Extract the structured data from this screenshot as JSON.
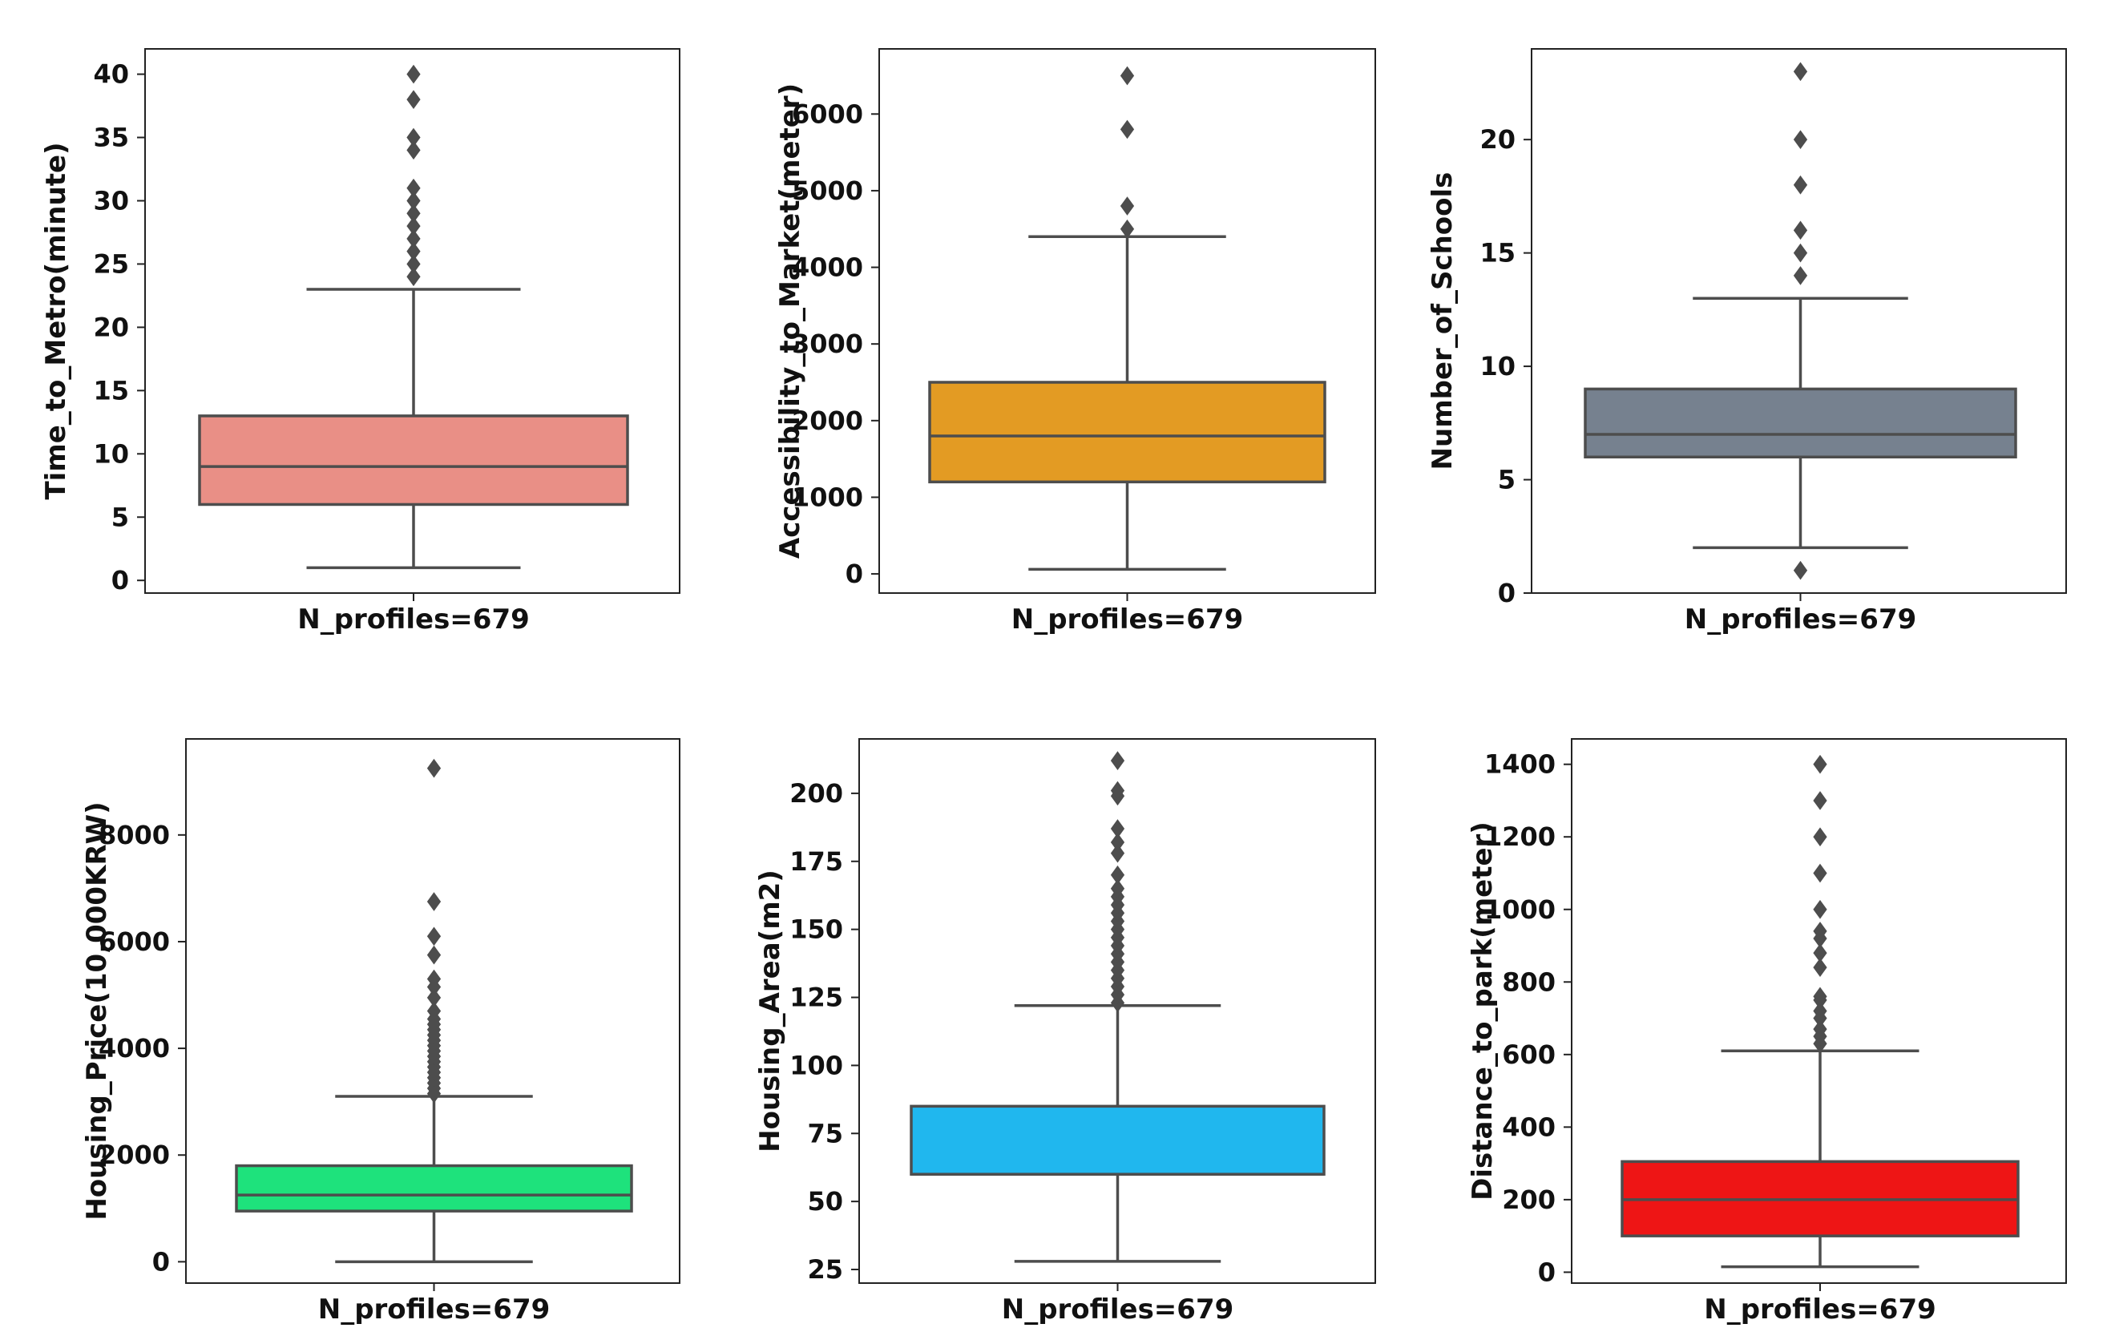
{
  "chart_data": [
    {
      "type": "boxplot",
      "xlabel": "N_profiles=679",
      "ylabel": "Time_to_Metro(minute)",
      "ylim": [
        -1,
        42
      ],
      "yticks": [
        0,
        5,
        10,
        15,
        20,
        25,
        30,
        35,
        40
      ],
      "color": "#e98f86",
      "stats": {
        "whisker_low": 1,
        "q1": 6,
        "median": 9,
        "q3": 13,
        "whisker_high": 23
      },
      "outliers": [
        24,
        25,
        26,
        27,
        28,
        29,
        30,
        31,
        34,
        35,
        38,
        40
      ]
    },
    {
      "type": "boxplot",
      "xlabel": "N_profiles=679",
      "ylabel": "Accessibility_to_Market(meter)",
      "ylim": [
        -250,
        6850
      ],
      "yticks": [
        0,
        1000,
        2000,
        3000,
        4000,
        5000,
        6000
      ],
      "color": "#e39b23",
      "stats": {
        "whisker_low": 60,
        "q1": 1200,
        "median": 1800,
        "q3": 2500,
        "whisker_high": 4400
      },
      "outliers": [
        4500,
        4800,
        5800,
        6500
      ]
    },
    {
      "type": "boxplot",
      "xlabel": "N_profiles=679",
      "ylabel": "Number_of_Schools",
      "ylim": [
        0,
        24
      ],
      "yticks": [
        0,
        5,
        10,
        15,
        20
      ],
      "color": "#76818f",
      "stats": {
        "whisker_low": 2,
        "q1": 6,
        "median": 7,
        "q3": 9,
        "whisker_high": 13
      },
      "outliers": [
        1,
        14,
        15,
        16,
        18,
        20,
        23
      ]
    },
    {
      "type": "boxplot",
      "xlabel": "N_profiles=679",
      "ylabel": "Housing_Price(10,000KRW)",
      "ylim": [
        -400,
        9800
      ],
      "yticks": [
        0,
        2000,
        4000,
        6000,
        8000
      ],
      "color": "#1ee27c",
      "stats": {
        "whisker_low": 0,
        "q1": 950,
        "median": 1250,
        "q3": 1800,
        "whisker_high": 3100
      },
      "outliers": [
        3150,
        3250,
        3350,
        3450,
        3550,
        3650,
        3750,
        3850,
        3950,
        4050,
        4150,
        4250,
        4350,
        4450,
        4550,
        4700,
        4950,
        5150,
        5300,
        5750,
        6100,
        6750,
        9250
      ]
    },
    {
      "type": "boxplot",
      "xlabel": "N_profiles=679",
      "ylabel": "Housing_Area(m2)",
      "ylim": [
        20,
        220
      ],
      "yticks": [
        25,
        50,
        75,
        100,
        125,
        150,
        175,
        200
      ],
      "color": "#20b7ee",
      "stats": {
        "whisker_low": 28,
        "q1": 60,
        "median": 60,
        "q3": 85,
        "whisker_high": 122
      },
      "outliers": [
        123,
        126,
        129,
        132,
        135,
        138,
        141,
        144,
        147,
        150,
        153,
        156,
        159,
        162,
        165,
        170,
        178,
        182,
        187,
        199,
        201,
        212
      ]
    },
    {
      "type": "boxplot",
      "xlabel": "N_profiles=679",
      "ylabel": "Distance_to_park(meter)",
      "ylim": [
        -30,
        1470
      ],
      "yticks": [
        0,
        200,
        400,
        600,
        800,
        1000,
        1200,
        1400
      ],
      "color": "#ee1515",
      "stats": {
        "whisker_low": 15,
        "q1": 100,
        "median": 200,
        "q3": 305,
        "whisker_high": 610
      },
      "outliers": [
        630,
        650,
        670,
        700,
        720,
        750,
        760,
        840,
        880,
        920,
        940,
        1000,
        1100,
        1200,
        1300,
        1400
      ]
    }
  ]
}
